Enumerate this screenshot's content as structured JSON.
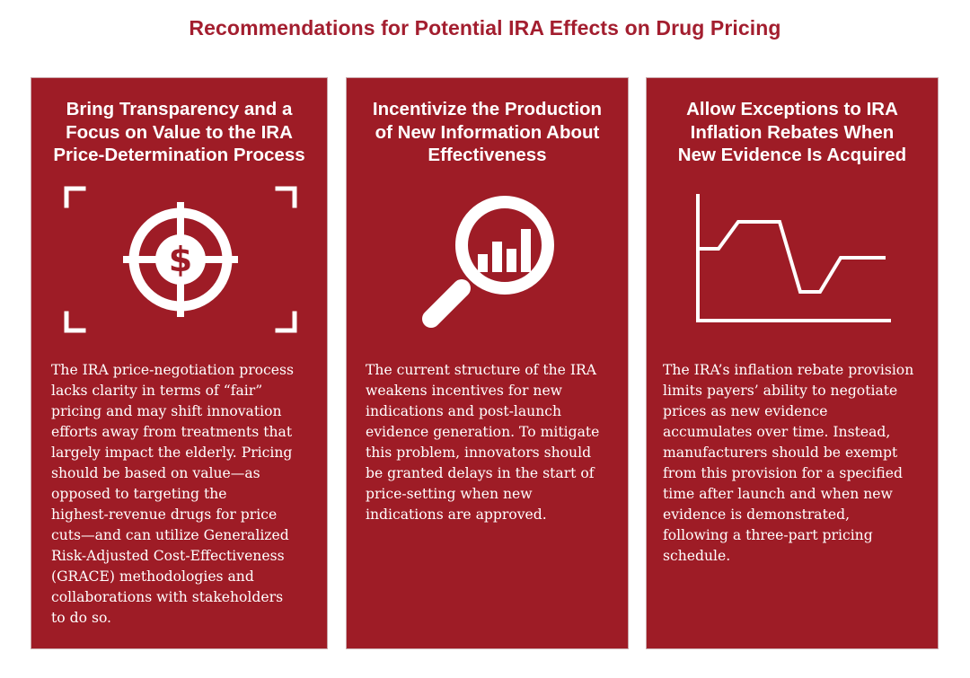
{
  "title": "Recommendations for Potential IRA Effects on Drug Pricing",
  "cards": [
    {
      "heading_lines": [
        "Bring Transparency and a",
        "Focus on Value to the IRA",
        "Price-Determination Process"
      ],
      "icon": "dollar-target-icon",
      "body_lines": [
        "The IRA price-negotiation process",
        "lacks clarity in terms of “fair”",
        "pricing and may shift innovation",
        "efforts away from treatments that",
        "largely impact the elderly. Pricing",
        "should be based on value—as",
        "opposed to targeting the",
        "highest-revenue drugs for price",
        "cuts—and can utilize Generalized",
        "Risk-Adjusted Cost-Effectiveness",
        "(GRACE) methodologies and",
        "collaborations with stakeholders",
        "to do so."
      ]
    },
    {
      "heading_lines": [
        "Incentivize the Production",
        "of New Information About",
        "Effectiveness"
      ],
      "icon": "magnifying-glass-chart-icon",
      "body_lines": [
        "The current structure of the IRA",
        "weakens incentives for new",
        "indications and post-launch",
        "evidence generation. To mitigate",
        "this problem, innovators should",
        "be granted delays in the start of",
        "price-setting when new",
        "indications are approved."
      ]
    },
    {
      "heading_lines": [
        "Allow Exceptions to IRA",
        "Inflation Rebates When",
        "New Evidence Is Acquired"
      ],
      "icon": "line-chart-icon",
      "body_lines": [
        "The IRA’s inflation rebate provision",
        "limits payers’ ability to negotiate",
        "prices as new evidence",
        "accumulates over time. Instead,",
        "manufacturers should be exempt",
        "from this provision for a specified",
        "time after launch and when new",
        "evidence is demonstrated,",
        "following a three-part pricing",
        "schedule."
      ]
    }
  ],
  "colors": {
    "title": "#a31e2f",
    "card_background": "#9e1c26",
    "card_text": "#ffffff"
  }
}
